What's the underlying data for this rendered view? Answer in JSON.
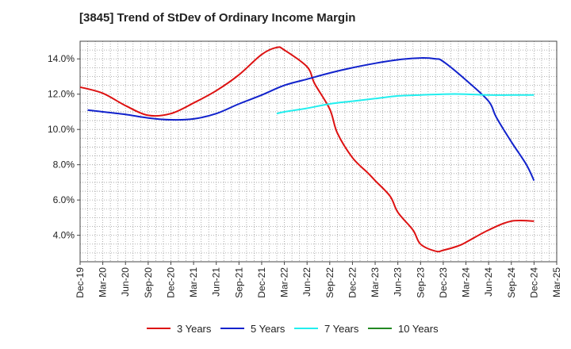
{
  "chart_data": {
    "type": "line",
    "title": "[3845]  Trend of StDev of Ordinary Income Margin",
    "xlabel": "",
    "ylabel": "",
    "x_ticks": [
      "Dec-19",
      "Mar-20",
      "Jun-20",
      "Sep-20",
      "Dec-20",
      "Mar-21",
      "Jun-21",
      "Sep-21",
      "Dec-21",
      "Mar-22",
      "Jun-22",
      "Sep-22",
      "Dec-22",
      "Mar-23",
      "Jun-23",
      "Sep-23",
      "Dec-23",
      "Mar-24",
      "Jun-24",
      "Sep-24",
      "Dec-24",
      "Mar-25"
    ],
    "y_ticks": [
      "4.0%",
      "6.0%",
      "8.0%",
      "10.0%",
      "12.0%",
      "14.0%"
    ],
    "y_tick_values": [
      4,
      6,
      8,
      10,
      12,
      14
    ],
    "ylim": [
      2.5,
      15.0
    ],
    "grid": true,
    "legend_position": "bottom",
    "series": [
      {
        "name": "3 Years",
        "color": "#dd1111",
        "x": [
          "Dec-19",
          "Mar-20",
          "Jun-20",
          "Sep-20",
          "Dec-20",
          "Mar-21",
          "Jun-21",
          "Sep-21",
          "Dec-21",
          "Feb-22",
          "Mar-22",
          "Jun-22",
          "Jul-22",
          "Sep-22",
          "Oct-22",
          "Dec-22",
          "Feb-23",
          "Mar-23",
          "May-23",
          "Jun-23",
          "Aug-23",
          "Sep-23",
          "Nov-23",
          "Dec-23",
          "Feb-24",
          "Mar-24",
          "Jun-24",
          "Sep-24",
          "Dec-24"
        ],
        "values": [
          12.4,
          12.05,
          11.35,
          10.8,
          10.9,
          11.5,
          12.2,
          13.1,
          14.25,
          14.65,
          14.5,
          13.55,
          12.6,
          11.15,
          9.8,
          8.4,
          7.55,
          7.1,
          6.2,
          5.3,
          4.3,
          3.5,
          3.1,
          3.15,
          3.4,
          3.6,
          4.3,
          4.8,
          4.8
        ]
      },
      {
        "name": "5 Years",
        "color": "#1122cc",
        "x": [
          "Jan-20",
          "Mar-20",
          "Jun-20",
          "Sep-20",
          "Dec-20",
          "Mar-21",
          "Jun-21",
          "Sep-21",
          "Dec-21",
          "Mar-22",
          "Jun-22",
          "Sep-22",
          "Dec-22",
          "Mar-23",
          "Jun-23",
          "Sep-23",
          "Nov-23",
          "Dec-23",
          "Mar-24",
          "Jun-24",
          "Jul-24",
          "Sep-24",
          "Nov-24",
          "Dec-24"
        ],
        "values": [
          11.1,
          11.0,
          10.85,
          10.65,
          10.55,
          10.6,
          10.9,
          11.45,
          11.95,
          12.5,
          12.85,
          13.2,
          13.5,
          13.75,
          13.95,
          14.05,
          14.0,
          13.85,
          12.8,
          11.6,
          10.7,
          9.3,
          8.0,
          7.1
        ]
      },
      {
        "name": "7 Years",
        "color": "#22eeee",
        "x": [
          "Feb-22",
          "Mar-22",
          "Jun-22",
          "Sep-22",
          "Dec-22",
          "Mar-23",
          "Jun-23",
          "Sep-23",
          "Dec-23",
          "Mar-24",
          "Jun-24",
          "Sep-24",
          "Dec-24"
        ],
        "values": [
          10.9,
          11.0,
          11.2,
          11.45,
          11.6,
          11.75,
          11.9,
          11.95,
          12.0,
          12.0,
          11.95,
          11.95,
          11.95
        ]
      },
      {
        "name": "10 Years",
        "color": "#228822",
        "x": [],
        "values": []
      }
    ]
  }
}
